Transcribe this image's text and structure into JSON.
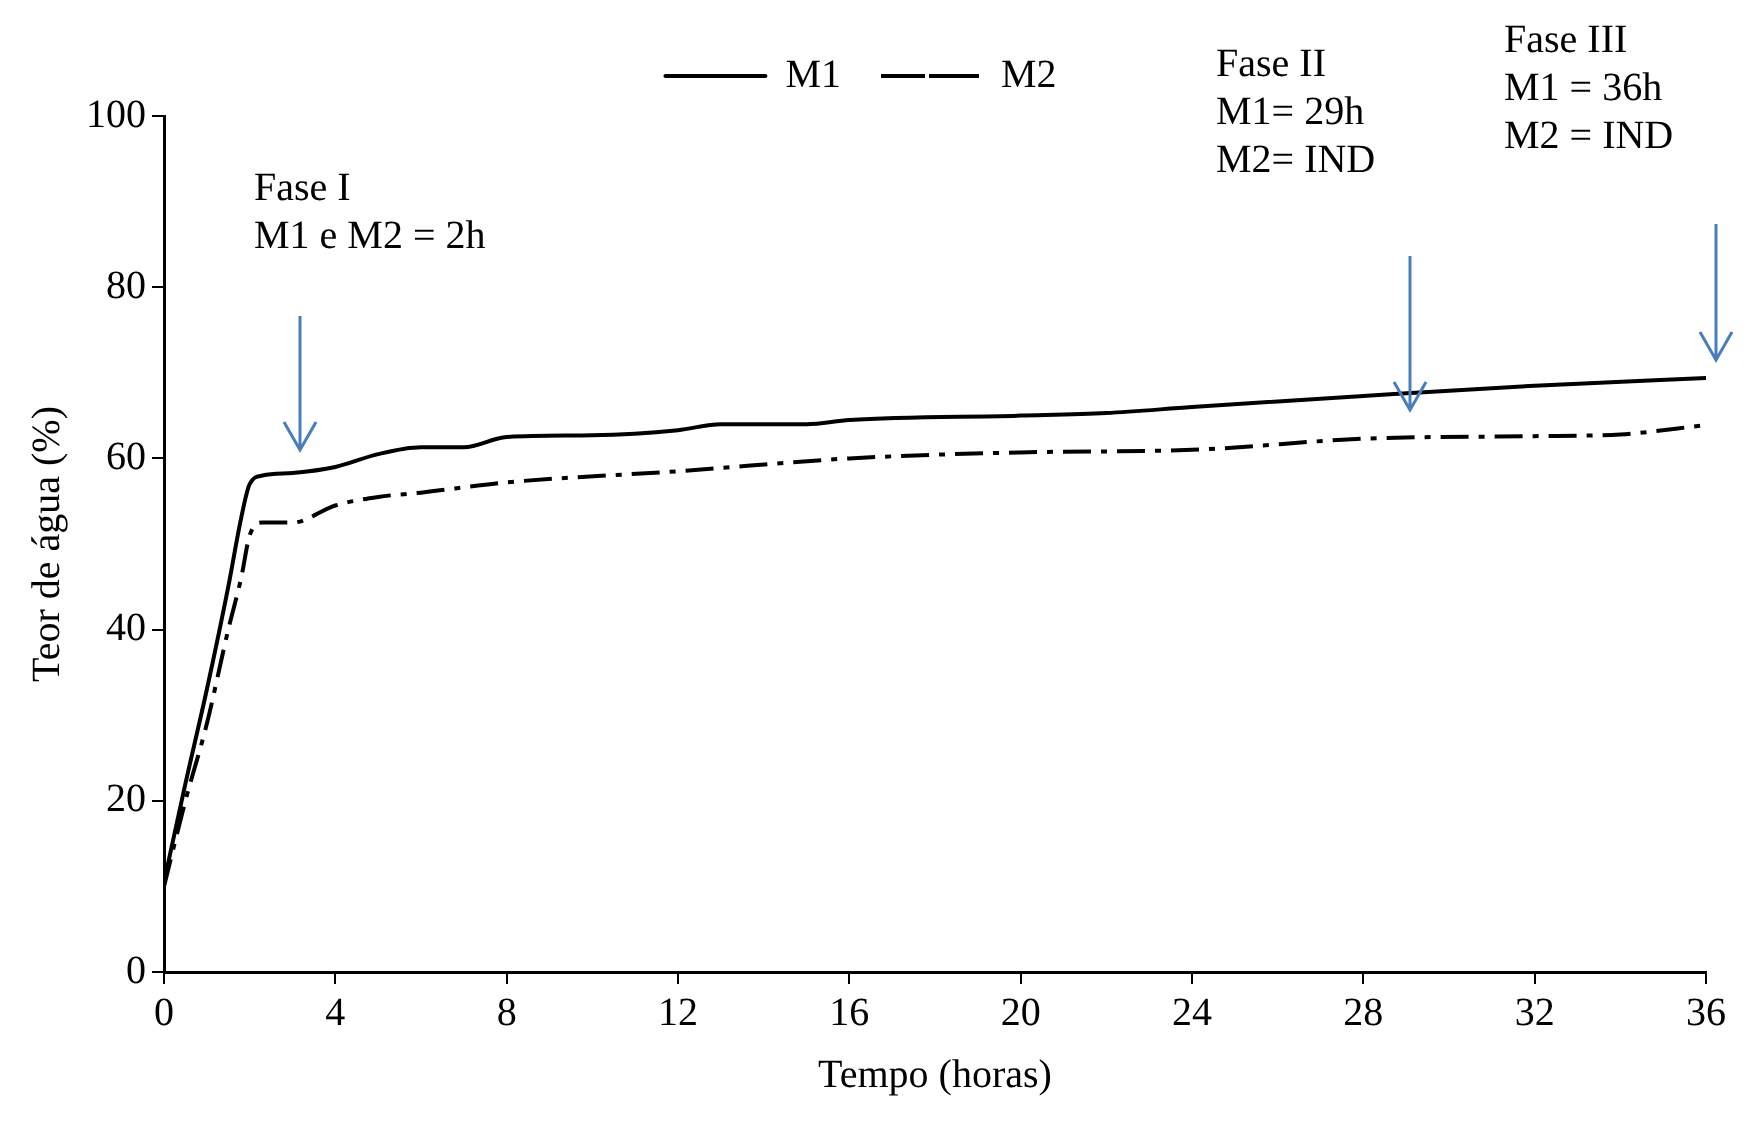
{
  "chart_data": {
    "type": "line",
    "xlabel": "Tempo (horas)",
    "ylabel": "Teor de água (%)",
    "xlim": [
      0,
      36
    ],
    "xticks": [
      0,
      4,
      8,
      12,
      16,
      20,
      24,
      28,
      32,
      36
    ],
    "ylim": [
      0,
      100
    ],
    "yticks": [
      0,
      20,
      40,
      60,
      80,
      100
    ],
    "grid": false,
    "legend": "top",
    "marker": "none",
    "series": [
      {
        "name": "M1",
        "color": "#000000",
        "line_style": "solid",
        "x": [
          0,
          0.5,
          1,
          1.5,
          1.8,
          2,
          2.3,
          3,
          4,
          5,
          6,
          7,
          8,
          10,
          12,
          13,
          15,
          16,
          20,
          22,
          24,
          28,
          32,
          36
        ],
        "values": [
          10.5,
          22,
          33,
          45,
          53,
          57,
          58,
          58.3,
          59,
          60.5,
          61.3,
          61.3,
          62.5,
          62.7,
          63.3,
          64,
          64,
          64.5,
          65,
          65.3,
          66,
          67.3,
          68.5,
          69.4
        ]
      },
      {
        "name": "M2",
        "color": "#000000",
        "line_style": "dashed",
        "x": [
          0,
          0.5,
          1,
          1.5,
          1.8,
          2,
          2.3,
          3,
          4,
          5,
          6,
          8,
          12,
          16,
          20,
          24,
          28,
          32,
          34,
          36
        ],
        "values": [
          10,
          20,
          29,
          40,
          46,
          51,
          52.5,
          52.5,
          54.5,
          55.5,
          56,
          57.2,
          58.5,
          60,
          60.7,
          61,
          62.3,
          62.6,
          62.8,
          63.9
        ]
      }
    ],
    "annotations": [
      "Fase I\nM1 e M2 = 2h",
      "Fase II\nM1= 29h\nM2= IND",
      "Fase III\nM1 = 36h\nM2 = IND"
    ]
  }
}
